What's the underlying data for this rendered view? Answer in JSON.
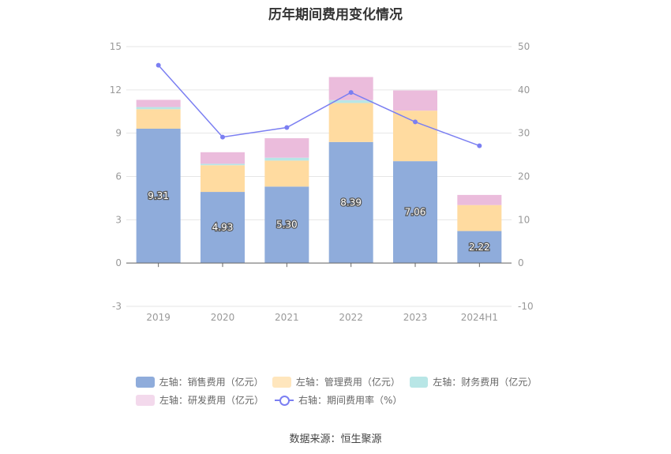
{
  "title": "历年期间费用变化情况",
  "source": "数据来源：恒生聚源",
  "chart_data": {
    "type": "bar",
    "stacked": true,
    "categories": [
      "2019",
      "2020",
      "2021",
      "2022",
      "2023",
      "2024H1"
    ],
    "left_axis": {
      "ylim": [
        -3,
        15
      ],
      "ticks": [
        "-3",
        "0",
        "3",
        "6",
        "9",
        "12",
        "15"
      ]
    },
    "right_axis": {
      "ylim": [
        -10,
        50
      ],
      "ticks": [
        "-10",
        "0",
        "10",
        "20",
        "30",
        "40",
        "50"
      ]
    },
    "series": [
      {
        "name": "左轴：销售费用（亿元）",
        "color": "#8facdb",
        "values": [
          9.31,
          4.93,
          5.3,
          8.39,
          7.06,
          2.22
        ],
        "labels": [
          "9.31",
          "4.93",
          "5.30",
          "8.39",
          "7.06",
          "2.22"
        ]
      },
      {
        "name": "左轴：管理费用（亿元）",
        "color": "#ffdba0",
        "values": [
          1.35,
          1.85,
          1.8,
          2.7,
          3.5,
          1.8
        ]
      },
      {
        "name": "左轴：财务费用（亿元）",
        "color": "#b8e6e6",
        "values": [
          0.15,
          0.1,
          0.2,
          0.2,
          0.0,
          0.0
        ]
      },
      {
        "name": "左轴：研发费用（亿元）",
        "color": "#ebbcdc",
        "values": [
          0.5,
          0.8,
          1.35,
          1.6,
          1.4,
          0.7
        ]
      }
    ],
    "line_series": {
      "name": "右轴：期间费用率（%）",
      "color": "#7b7ff2",
      "values": [
        45.7,
        29.1,
        31.3,
        39.4,
        32.6,
        27.1
      ]
    }
  }
}
